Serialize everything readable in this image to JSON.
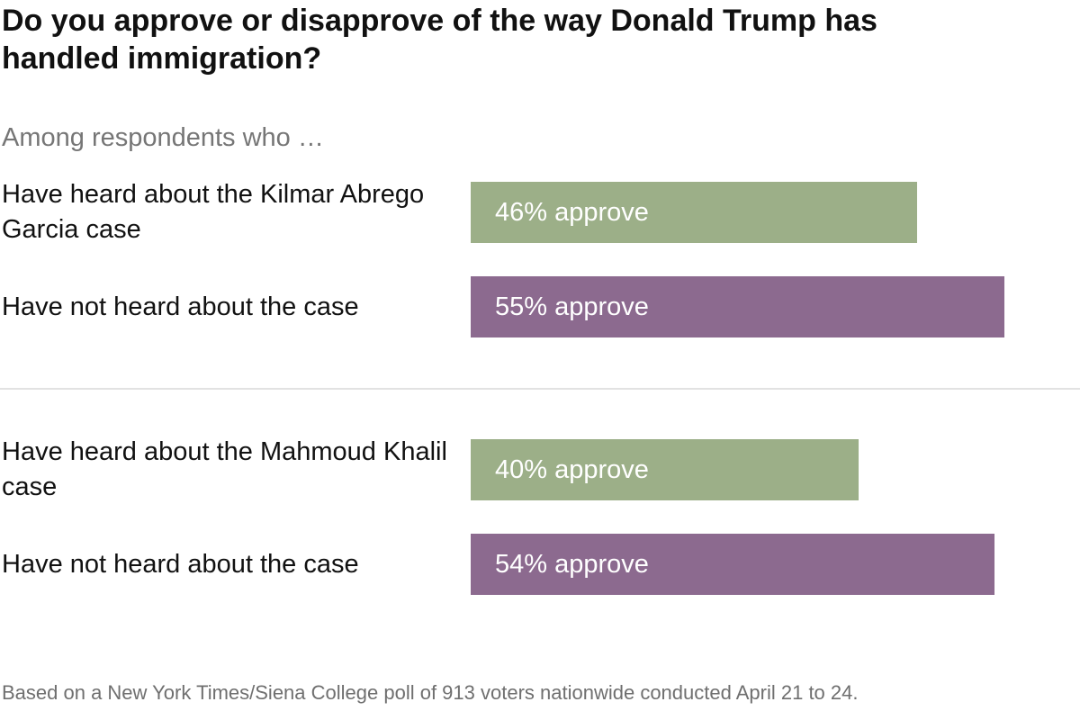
{
  "title": "Do you approve or disapprove of the way Donald Trump has handled immigration?",
  "subtitle": "Among respondents who …",
  "note": "Based on a New York Times/Siena College poll of 913 voters nationwide conducted April 21 to 24.",
  "colors": {
    "heard": "#9caf88",
    "not_heard": "#8c6a8f",
    "divider": "#e2e2e2"
  },
  "chart_data": {
    "type": "bar",
    "orientation": "horizontal",
    "title": "Do you approve or disapprove of the way Donald Trump has handled immigration?",
    "subtitle": "Among respondents who …",
    "unit": "% approve",
    "xlim": [
      0,
      64
    ],
    "grid": false,
    "groups": [
      {
        "bars": [
          {
            "category": "Have heard about the Kilmar Abrego Garcia case",
            "value": 46,
            "label": "46% approve",
            "color": "#9caf88"
          },
          {
            "category": "Have not heard about the case",
            "value": 55,
            "label": "55% approve",
            "color": "#8c6a8f"
          }
        ]
      },
      {
        "bars": [
          {
            "category": "Have heard about the Mahmoud Khalil case",
            "value": 40,
            "label": "40% approve",
            "color": "#9caf88"
          },
          {
            "category": "Have not heard about the case",
            "value": 54,
            "label": "54% approve",
            "color": "#8c6a8f"
          }
        ]
      }
    ]
  }
}
